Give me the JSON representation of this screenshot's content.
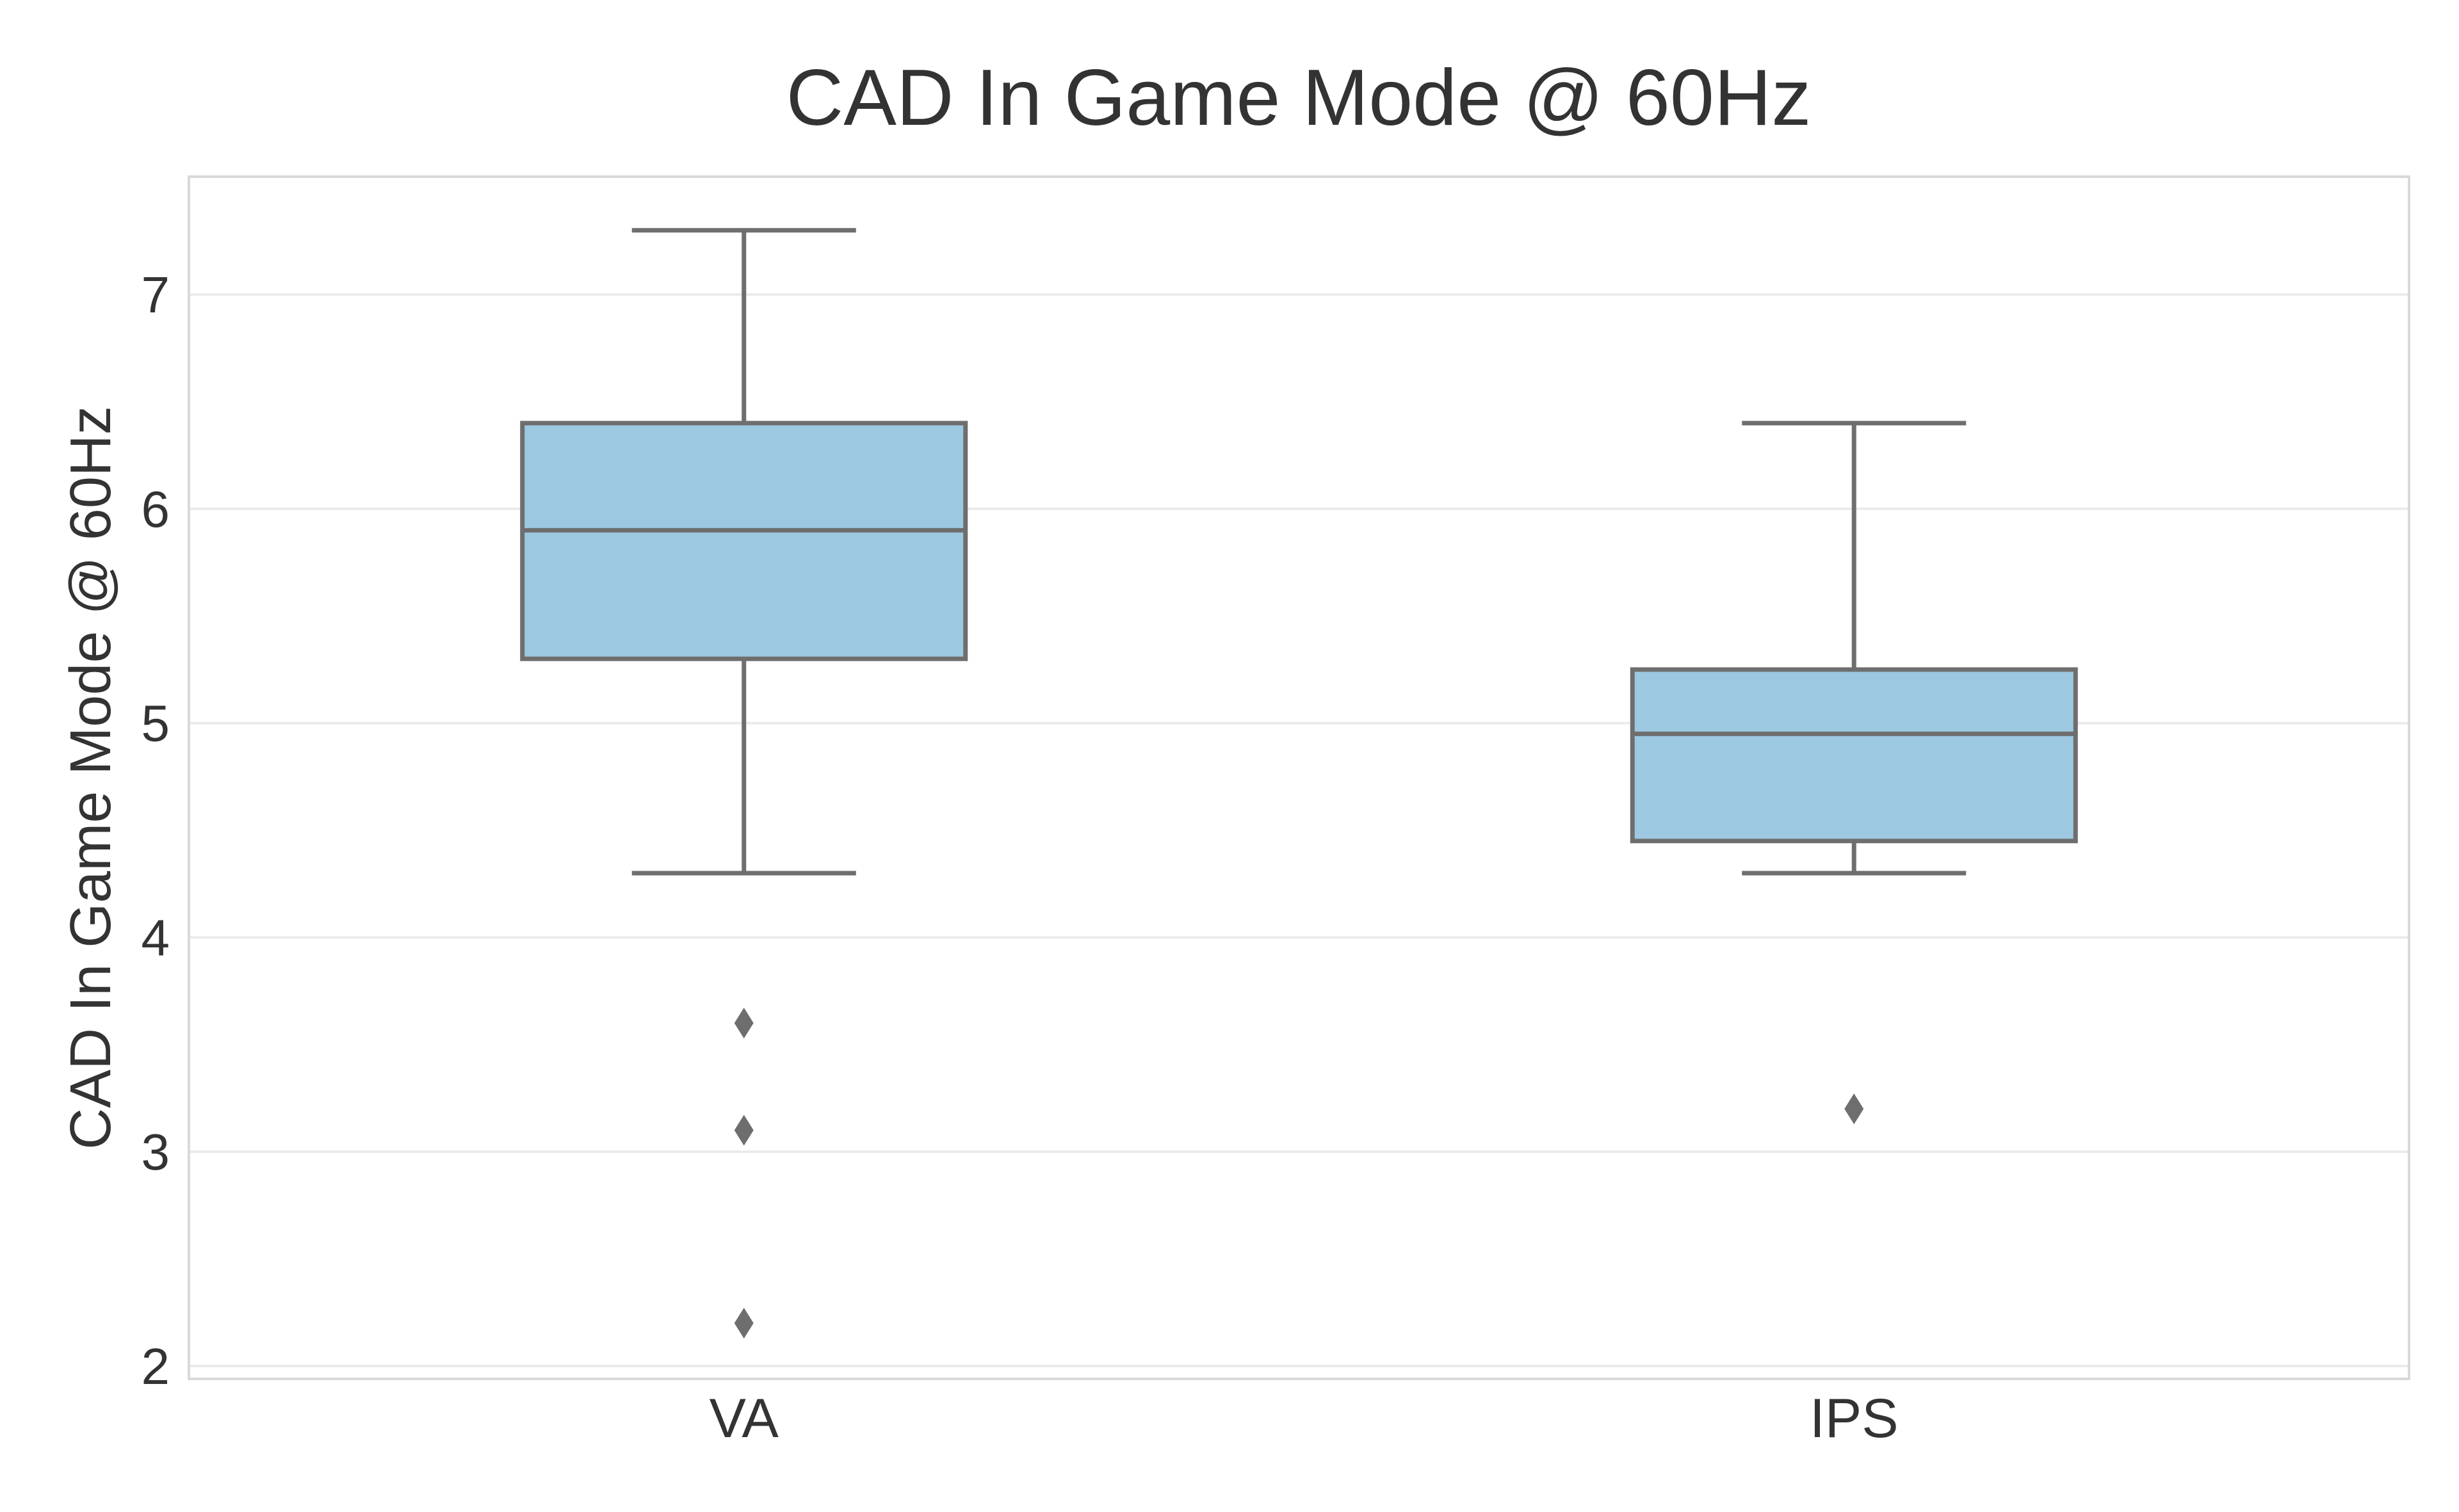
{
  "chart_data": {
    "type": "box",
    "title": "CAD In Game Mode @ 60Hz",
    "xlabel": "",
    "ylabel": "CAD In Game Mode @ 60Hz",
    "ylim": [
      1.94,
      7.55
    ],
    "yticks": [
      2,
      3,
      4,
      5,
      6,
      7
    ],
    "grid": true,
    "categories": [
      "VA",
      "IPS"
    ],
    "boxes": [
      {
        "category": "VA",
        "whisker_low": 4.3,
        "q1": 5.3,
        "median": 5.9,
        "q3": 6.4,
        "whisker_high": 7.3,
        "outliers": [
          3.6,
          3.1,
          2.2
        ]
      },
      {
        "category": "IPS",
        "whisker_low": 4.3,
        "q1": 4.45,
        "median": 4.95,
        "q3": 5.25,
        "whisker_high": 6.4,
        "outliers": [
          3.2
        ]
      }
    ],
    "colors": {
      "box_fill": "#9dc8e1",
      "line": "#6e6e6e",
      "grid": "#ebebeb",
      "frame": "#d9d9d9"
    }
  }
}
